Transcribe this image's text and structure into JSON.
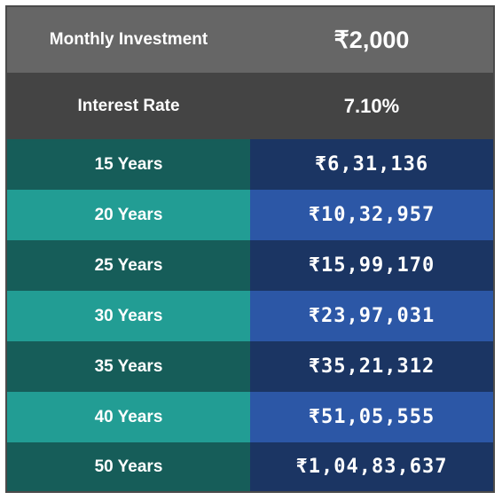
{
  "header": {
    "investment_label": "Monthly Investment",
    "investment_value": "₹2,000",
    "rate_label": "Interest Rate",
    "rate_value": "7.10%"
  },
  "rows": [
    {
      "years": "15 Years",
      "amount": "₹6,31,136"
    },
    {
      "years": "20 Years",
      "amount": "₹10,32,957"
    },
    {
      "years": "25 Years",
      "amount": "₹15,99,170"
    },
    {
      "years": "30 Years",
      "amount": "₹23,97,031"
    },
    {
      "years": "35 Years",
      "amount": "₹35,21,312"
    },
    {
      "years": "40 Years",
      "amount": "₹51,05,555"
    },
    {
      "years": "50 Years",
      "amount": "₹1,04,83,637"
    }
  ],
  "colors": {
    "header_bg_1": "#666666",
    "header_bg_2": "#444444",
    "teal_dark": "#165d59",
    "teal_light": "#229d94",
    "blue_dark": "#1b3563",
    "blue_light": "#2c57a6"
  }
}
